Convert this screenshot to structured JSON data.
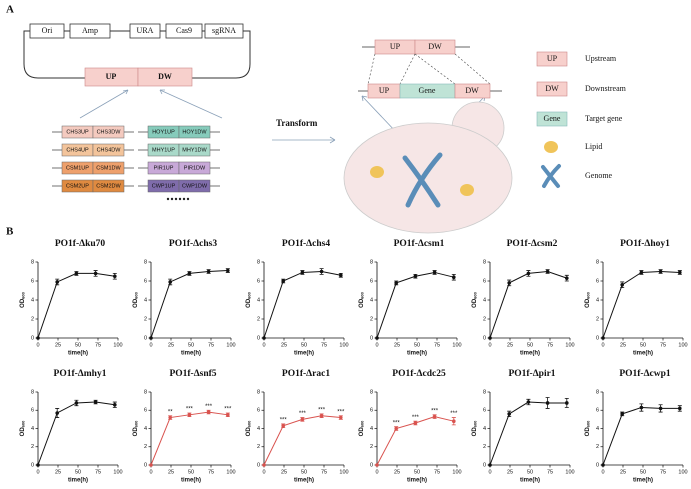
{
  "panel_a": {
    "label": "A",
    "plasmid": [
      "Ori",
      "Amp",
      "URA",
      "Cas9",
      "sgRNA"
    ],
    "insert": {
      "up": "UP",
      "dw": "DW"
    },
    "gene_pairs": [
      {
        "up": "CHS3UP",
        "dw": "CHS3DW",
        "color": "#f4cabf"
      },
      {
        "up": "CHS4UP",
        "dw": "CHS4DW",
        "color": "#f3c49b"
      },
      {
        "up": "CSM1UP",
        "dw": "CSM1DW",
        "color": "#eea06c"
      },
      {
        "up": "CSM2UP",
        "dw": "CSM2DW",
        "color": "#df8a40"
      },
      {
        "up": "HOY1UP",
        "dw": "HOY1DW",
        "color": "#86cbbb"
      },
      {
        "up": "MHY1UP",
        "dw": "MHY1DW",
        "color": "#a9d9c9"
      },
      {
        "up": "PIR1UP",
        "dw": "PIR1DW",
        "color": "#c8a9d8"
      },
      {
        "up": "CWP1UP",
        "dw": "CWP1DW",
        "color": "#7f6cab"
      }
    ],
    "transform": "Transform",
    "donor": {
      "up": "UP",
      "dw": "DW"
    },
    "genome_locus": {
      "up": "UP",
      "gene": "Gene",
      "dw": "DW"
    },
    "legend": [
      {
        "symbol": "UP",
        "label": "Upstream"
      },
      {
        "symbol": "DW",
        "label": "Downstream"
      },
      {
        "symbol": "Gene",
        "label": "Target gene"
      },
      {
        "label": "Lipid"
      },
      {
        "label": "Genome"
      }
    ]
  },
  "panel_b_label": "B",
  "chart_data": [
    {
      "type": "line",
      "title": "PO1f-Δku70",
      "x_label": "time(h)",
      "y_label": "OD",
      "y_label_subscript": "600",
      "color": "#111111",
      "x": [
        0,
        24,
        48,
        72,
        96
      ],
      "values": [
        0,
        5.9,
        6.8,
        6.8,
        6.5
      ],
      "errors": [
        0,
        0.3,
        0.2,
        0.3,
        0.3
      ],
      "xlim": [
        0,
        100
      ],
      "xticks": [
        0,
        25,
        50,
        75,
        100
      ],
      "ylim": [
        0,
        8
      ],
      "yticks": [
        0,
        2,
        4,
        6,
        8
      ]
    },
    {
      "type": "line",
      "title": "PO1f-Δchs3",
      "x_label": "time(h)",
      "y_label": "OD",
      "y_label_subscript": "600",
      "color": "#111111",
      "x": [
        0,
        24,
        48,
        72,
        96
      ],
      "values": [
        0,
        5.9,
        6.8,
        7.0,
        7.1
      ],
      "errors": [
        0,
        0.3,
        0.2,
        0.2,
        0.2
      ],
      "xlim": [
        0,
        100
      ],
      "xticks": [
        0,
        25,
        50,
        75,
        100
      ],
      "ylim": [
        0,
        8
      ],
      "yticks": [
        0,
        2,
        4,
        6,
        8
      ]
    },
    {
      "type": "line",
      "title": "PO1f-Δchs4",
      "x_label": "time(h)",
      "y_label": "OD",
      "y_label_subscript": "600",
      "color": "#111111",
      "x": [
        0,
        24,
        48,
        72,
        96
      ],
      "values": [
        0,
        6.0,
        6.9,
        7.0,
        6.6
      ],
      "errors": [
        0,
        0.2,
        0.2,
        0.3,
        0.2
      ],
      "xlim": [
        0,
        100
      ],
      "xticks": [
        0,
        25,
        50,
        75,
        100
      ],
      "ylim": [
        0,
        8
      ],
      "yticks": [
        0,
        2,
        4,
        6,
        8
      ]
    },
    {
      "type": "line",
      "title": "PO1f-Δcsm1",
      "x_label": "time(h)",
      "y_label": "OD",
      "y_label_subscript": "600",
      "color": "#111111",
      "x": [
        0,
        24,
        48,
        72,
        96
      ],
      "values": [
        0,
        5.8,
        6.5,
        6.9,
        6.4
      ],
      "errors": [
        0,
        0.2,
        0.2,
        0.2,
        0.3
      ],
      "xlim": [
        0,
        100
      ],
      "xticks": [
        0,
        25,
        50,
        75,
        100
      ],
      "ylim": [
        0,
        8
      ],
      "yticks": [
        0,
        2,
        4,
        6,
        8
      ]
    },
    {
      "type": "line",
      "title": "PO1f-Δcsm2",
      "x_label": "time(h)",
      "y_label": "OD",
      "y_label_subscript": "600",
      "color": "#111111",
      "x": [
        0,
        24,
        48,
        72,
        96
      ],
      "values": [
        0,
        5.8,
        6.8,
        7.0,
        6.3
      ],
      "errors": [
        0,
        0.3,
        0.3,
        0.2,
        0.3
      ],
      "xlim": [
        0,
        100
      ],
      "xticks": [
        0,
        25,
        50,
        75,
        100
      ],
      "ylim": [
        0,
        8
      ],
      "yticks": [
        0,
        2,
        4,
        6,
        8
      ]
    },
    {
      "type": "line",
      "title": "PO1f-Δhoy1",
      "x_label": "time(h)",
      "y_label": "OD",
      "y_label_subscript": "600",
      "color": "#111111",
      "x": [
        0,
        24,
        48,
        72,
        96
      ],
      "values": [
        0,
        5.6,
        6.9,
        7.0,
        6.9
      ],
      "errors": [
        0,
        0.3,
        0.2,
        0.2,
        0.2
      ],
      "xlim": [
        0,
        100
      ],
      "xticks": [
        0,
        25,
        50,
        75,
        100
      ],
      "ylim": [
        0,
        8
      ],
      "yticks": [
        0,
        2,
        4,
        6,
        8
      ]
    },
    {
      "type": "line",
      "title": "PO1f-Δmhy1",
      "x_label": "time(h)",
      "y_label": "OD",
      "y_label_subscript": "600",
      "color": "#111111",
      "x": [
        0,
        24,
        48,
        72,
        96
      ],
      "values": [
        0,
        5.7,
        6.8,
        6.9,
        6.6
      ],
      "errors": [
        0,
        0.5,
        0.3,
        0.2,
        0.3
      ],
      "xlim": [
        0,
        100
      ],
      "xticks": [
        0,
        25,
        50,
        75,
        100
      ],
      "ylim": [
        0,
        8
      ],
      "yticks": [
        0,
        2,
        4,
        6,
        8
      ]
    },
    {
      "type": "line",
      "title": "PO1f-Δsnf5",
      "x_label": "time(h)",
      "y_label": "OD",
      "y_label_subscript": "600",
      "color": "#d9534f",
      "x": [
        0,
        24,
        48,
        72,
        96
      ],
      "values": [
        0,
        5.2,
        5.5,
        5.8,
        5.5
      ],
      "errors": [
        0,
        0.2,
        0.2,
        0.2,
        0.2
      ],
      "significance": [
        null,
        "**",
        "***",
        "***",
        "***"
      ],
      "xlim": [
        0,
        100
      ],
      "xticks": [
        0,
        25,
        50,
        75,
        100
      ],
      "ylim": [
        0,
        8
      ],
      "yticks": [
        0,
        2,
        4,
        6,
        8
      ]
    },
    {
      "type": "line",
      "title": "PO1f-Δrac1",
      "x_label": "time(h)",
      "y_label": "OD",
      "y_label_subscript": "600",
      "color": "#d9534f",
      "x": [
        0,
        24,
        48,
        72,
        96
      ],
      "values": [
        0,
        4.3,
        5.0,
        5.4,
        5.2
      ],
      "errors": [
        0,
        0.2,
        0.2,
        0.2,
        0.2
      ],
      "significance": [
        null,
        "***",
        "***",
        "***",
        "***"
      ],
      "xlim": [
        0,
        100
      ],
      "xticks": [
        0,
        25,
        50,
        75,
        100
      ],
      "ylim": [
        0,
        8
      ],
      "yticks": [
        0,
        2,
        4,
        6,
        8
      ]
    },
    {
      "type": "line",
      "title": "PO1f-Δcdc25",
      "x_label": "time(h)",
      "y_label": "OD",
      "y_label_subscript": "600",
      "color": "#d9534f",
      "x": [
        0,
        24,
        48,
        72,
        96
      ],
      "values": [
        0,
        4.0,
        4.6,
        5.3,
        4.8
      ],
      "errors": [
        0,
        0.2,
        0.2,
        0.2,
        0.4
      ],
      "significance": [
        null,
        "***",
        "***",
        "***",
        "***"
      ],
      "xlim": [
        0,
        100
      ],
      "xticks": [
        0,
        25,
        50,
        75,
        100
      ],
      "ylim": [
        0,
        8
      ],
      "yticks": [
        0,
        2,
        4,
        6,
        8
      ]
    },
    {
      "type": "line",
      "title": "PO1f-Δpir1",
      "x_label": "time(h)",
      "y_label": "OD",
      "y_label_subscript": "600",
      "color": "#111111",
      "x": [
        0,
        24,
        48,
        72,
        96
      ],
      "values": [
        0,
        5.6,
        6.9,
        6.8,
        6.8
      ],
      "errors": [
        0,
        0.3,
        0.3,
        0.6,
        0.5
      ],
      "xlim": [
        0,
        100
      ],
      "xticks": [
        0,
        25,
        50,
        75,
        100
      ],
      "ylim": [
        0,
        8
      ],
      "yticks": [
        0,
        2,
        4,
        6,
        8
      ]
    },
    {
      "type": "line",
      "title": "PO1f-Δcwp1",
      "x_label": "time(h)",
      "y_label": "OD",
      "y_label_subscript": "600",
      "color": "#111111",
      "x": [
        0,
        24,
        48,
        72,
        96
      ],
      "values": [
        0,
        5.6,
        6.3,
        6.2,
        6.2
      ],
      "errors": [
        0,
        0.2,
        0.4,
        0.4,
        0.3
      ],
      "xlim": [
        0,
        100
      ],
      "xticks": [
        0,
        25,
        50,
        75,
        100
      ],
      "ylim": [
        0,
        8
      ],
      "yticks": [
        0,
        2,
        4,
        6,
        8
      ]
    }
  ]
}
